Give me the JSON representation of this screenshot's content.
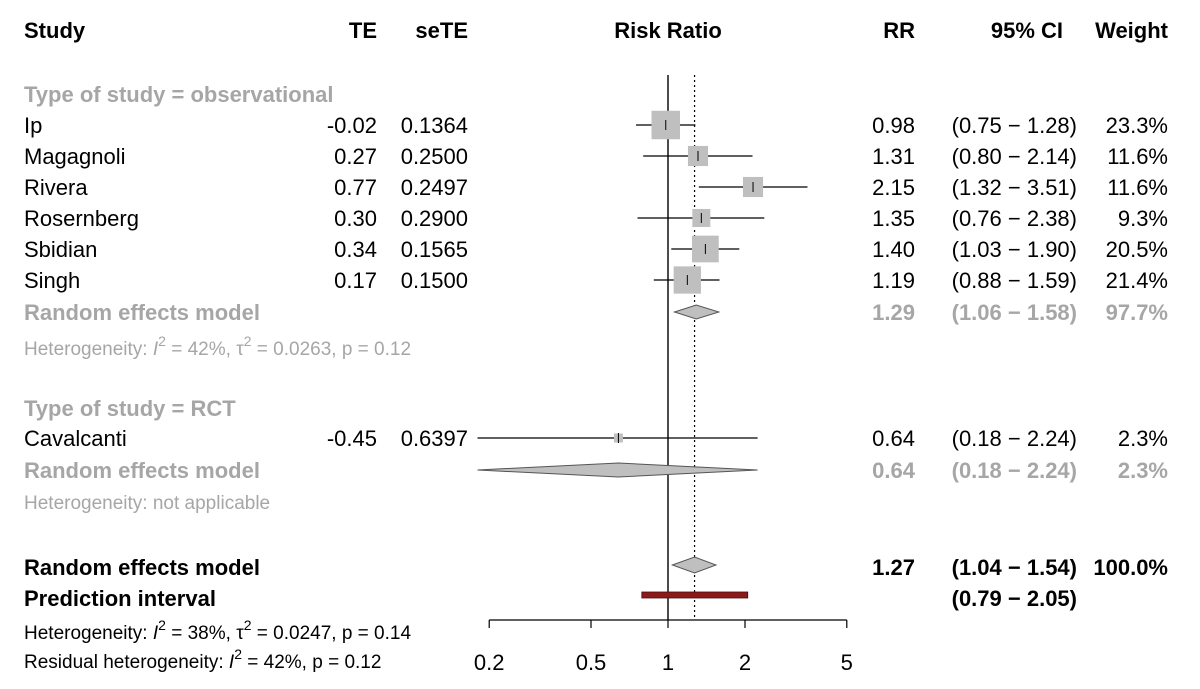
{
  "chart_data": {
    "type": "forest",
    "header": {
      "study": "Study",
      "te": "TE",
      "sete": "seTE",
      "plot": "Risk Ratio",
      "rr": "RR",
      "ci": "95% CI",
      "weight": "Weight"
    },
    "axis": {
      "scale": "log",
      "ticks": [
        0.2,
        0.5,
        1,
        2,
        5
      ],
      "tick_labels": [
        "0.2",
        "0.5",
        "1",
        "2",
        "5"
      ],
      "xlim": [
        0.2,
        5
      ],
      "null_line": 1,
      "overall_line": 1.27
    },
    "groups": [
      {
        "label": "Type of study = observational",
        "studies": [
          {
            "name": "Ip",
            "te": "-0.02",
            "sete": "0.1364",
            "rr": 0.98,
            "lower": 0.75,
            "upper": 1.28,
            "rr_text": "0.98",
            "ci_text": "(0.75 − 1.28)",
            "weight_text": "23.3%",
            "weight": 23.3
          },
          {
            "name": "Magagnoli",
            "te": "0.27",
            "sete": "0.2500",
            "rr": 1.31,
            "lower": 0.8,
            "upper": 2.14,
            "rr_text": "1.31",
            "ci_text": "(0.80 − 2.14)",
            "weight_text": "11.6%",
            "weight": 11.6
          },
          {
            "name": "Rivera",
            "te": "0.77",
            "sete": "0.2497",
            "rr": 2.15,
            "lower": 1.32,
            "upper": 3.51,
            "rr_text": "2.15",
            "ci_text": "(1.32 − 3.51)",
            "weight_text": "11.6%",
            "weight": 11.6
          },
          {
            "name": "Rosernberg",
            "te": "0.30",
            "sete": "0.2900",
            "rr": 1.35,
            "lower": 0.76,
            "upper": 2.38,
            "rr_text": "1.35",
            "ci_text": "(0.76 − 2.38)",
            "weight_text": "9.3%",
            "weight": 9.3
          },
          {
            "name": "Sbidian",
            "te": "0.34",
            "sete": "0.1565",
            "rr": 1.4,
            "lower": 1.03,
            "upper": 1.9,
            "rr_text": "1.40",
            "ci_text": "(1.03 − 1.90)",
            "weight_text": "20.5%",
            "weight": 20.5
          },
          {
            "name": "Singh",
            "te": "0.17",
            "sete": "0.1500",
            "rr": 1.19,
            "lower": 0.88,
            "upper": 1.59,
            "rr_text": "1.19",
            "ci_text": "(0.88 − 1.59)",
            "weight_text": "21.4%",
            "weight": 21.4
          }
        ],
        "summary": {
          "label": "Random effects model",
          "rr": 1.29,
          "lower": 1.06,
          "upper": 1.58,
          "rr_text": "1.29",
          "ci_text": "(1.06 − 1.58)",
          "weight_text": "97.7%"
        },
        "heterogeneity": {
          "prefix": "Heterogeneity: ",
          "i2": "I",
          "i2_sup": "2",
          "i2_val": " = 42%, ",
          "tau": "τ",
          "tau_sup": "2",
          "tau_val": " = 0.0263, p = 0.12"
        }
      },
      {
        "label": "Type of study = RCT",
        "studies": [
          {
            "name": "Cavalcanti",
            "te": "-0.45",
            "sete": "0.6397",
            "rr": 0.64,
            "lower": 0.18,
            "upper": 2.24,
            "rr_text": "0.64",
            "ci_text": "(0.18 − 2.24)",
            "weight_text": "2.3%",
            "weight": 2.3
          }
        ],
        "summary": {
          "label": "Random effects model",
          "rr": 0.64,
          "lower": 0.18,
          "upper": 2.24,
          "rr_text": "0.64",
          "ci_text": "(0.18 − 2.24)",
          "weight_text": "2.3%"
        },
        "heterogeneity_text": "Heterogeneity: not applicable"
      }
    ],
    "overall": {
      "label": "Random effects model",
      "rr": 1.27,
      "lower": 1.04,
      "upper": 1.54,
      "rr_text": "1.27",
      "ci_text": "(1.04 − 1.54)",
      "weight_text": "100.0%"
    },
    "prediction": {
      "label": "Prediction interval",
      "lower": 0.79,
      "upper": 2.05,
      "ci_text": "(0.79 − 2.05)"
    },
    "heterogeneity_overall": {
      "prefix": "Heterogeneity: ",
      "i2": "I",
      "i2_sup": "2",
      "i2_val": " = 38%, ",
      "tau": "τ",
      "tau_sup": "2",
      "tau_val": " = 0.0247, p = 0.14"
    },
    "residual_heterogeneity": {
      "prefix": "Residual heterogeneity: ",
      "i2": "I",
      "i2_sup": "2",
      "i2_val": " = 42%, p = 0.12"
    },
    "colors": {
      "text": "#000000",
      "subgroup_text": "#a6a6a6",
      "study_box": "#bfbfbf",
      "diamond": "#bfbfbf",
      "prediction_bar": "#8b1a1a"
    }
  }
}
